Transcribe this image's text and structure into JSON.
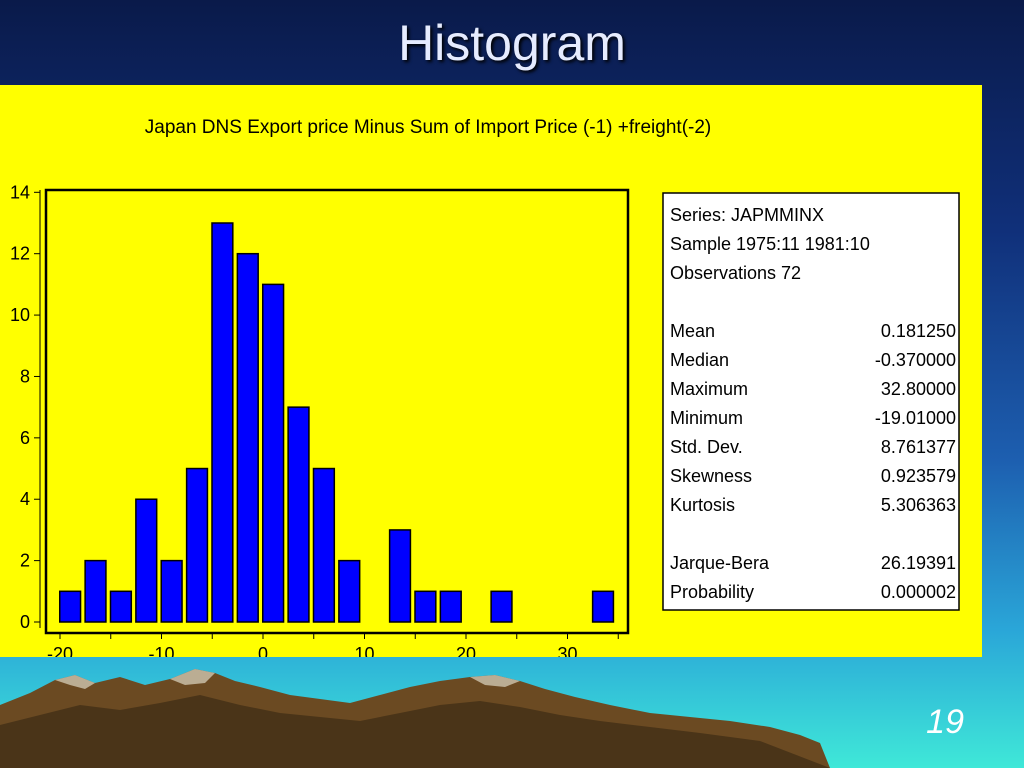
{
  "slide": {
    "title": "Histogram",
    "page_number": "19"
  },
  "chart_data": {
    "type": "bar",
    "title": "Japan DNS Export price Minus Sum of Import Price (-1) +freight(-2)",
    "xlabel": "",
    "ylabel": "",
    "ylim": [
      0,
      14
    ],
    "xlim": [
      -21,
      36
    ],
    "y_ticks": [
      "0",
      "2",
      "4",
      "6",
      "8",
      "10",
      "12",
      "14"
    ],
    "x_ticks": [
      "-20",
      "-10",
      "0",
      "10",
      "20",
      "30"
    ],
    "bin_width": 2.5,
    "bins": [
      {
        "center": -19,
        "count": 1
      },
      {
        "center": -16.5,
        "count": 2
      },
      {
        "center": -14,
        "count": 1
      },
      {
        "center": -11.5,
        "count": 4
      },
      {
        "center": -9,
        "count": 2
      },
      {
        "center": -6.5,
        "count": 5
      },
      {
        "center": -4,
        "count": 13
      },
      {
        "center": -1.5,
        "count": 12
      },
      {
        "center": 1,
        "count": 11
      },
      {
        "center": 3.5,
        "count": 7
      },
      {
        "center": 6,
        "count": 5
      },
      {
        "center": 8.5,
        "count": 2
      },
      {
        "center": 11,
        "count": 0
      },
      {
        "center": 13.5,
        "count": 3
      },
      {
        "center": 16,
        "count": 1
      },
      {
        "center": 18.5,
        "count": 1
      },
      {
        "center": 21,
        "count": 0
      },
      {
        "center": 23.5,
        "count": 1
      },
      {
        "center": 26,
        "count": 0
      },
      {
        "center": 28.5,
        "count": 0
      },
      {
        "center": 31,
        "count": 0
      },
      {
        "center": 33.5,
        "count": 1
      }
    ],
    "bar_color": "#0000ff",
    "background_color": "#ffff00"
  },
  "stats": {
    "header": [
      "Series: JAPMMINX",
      "Sample 1975:11 1981:10",
      "Observations 72"
    ],
    "rows": [
      {
        "label": "Mean",
        "value": "0.181250"
      },
      {
        "label": "Median",
        "value": "-0.370000"
      },
      {
        "label": "Maximum",
        "value": "32.80000"
      },
      {
        "label": "Minimum",
        "value": "-19.01000"
      },
      {
        "label": "Std. Dev.",
        "value": "8.761377"
      },
      {
        "label": "Skewness",
        "value": "0.923579"
      },
      {
        "label": "Kurtosis",
        "value": "5.306363"
      }
    ],
    "test_rows": [
      {
        "label": "Jarque-Bera",
        "value": "26.19391"
      },
      {
        "label": "Probability",
        "value": "0.000002"
      }
    ]
  }
}
